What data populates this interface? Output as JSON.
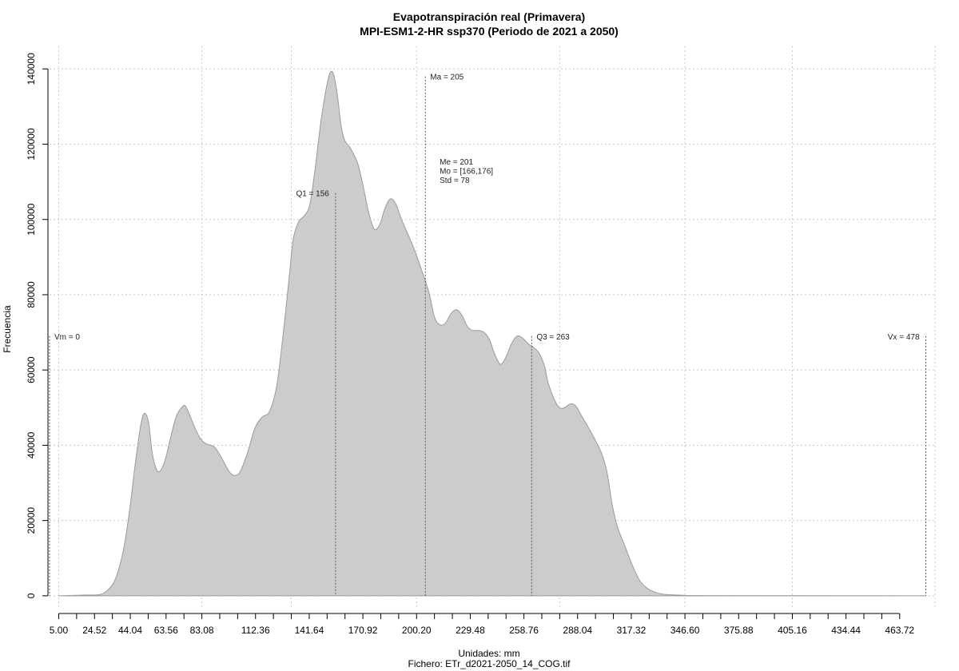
{
  "chart_data": {
    "type": "area",
    "title": "Evapotranspiración real (Primavera)",
    "subtitle": "MPI-ESM1-2-HR ssp370 (Periodo de 2021 a 2050)",
    "xlabel": "Unidades: mm",
    "ylabel": "Frecuencia",
    "caption": "Fichero: ETr_d2021-2050_14_COG.tif",
    "xlim": [
      0,
      483
    ],
    "ylim": [
      -3000,
      146000
    ],
    "x_ticks": [
      5.0,
      24.52,
      44.04,
      63.56,
      83.08,
      112.36,
      141.64,
      170.92,
      200.2,
      229.48,
      258.76,
      288.04,
      317.32,
      346.6,
      375.88,
      405.16,
      434.44,
      463.72
    ],
    "x_tick_labels": [
      "5.00",
      "24.52",
      "44.04",
      "63.56",
      "83.08",
      "112.36",
      "141.64",
      "170.92",
      "200.20",
      "229.48",
      "258.76",
      "288.04",
      "317.32",
      "346.60",
      "375.88",
      "405.16",
      "434.44",
      "463.72"
    ],
    "x_minor_ticks": [
      14.76,
      34.28,
      53.8,
      73.32,
      92.84,
      102.6,
      122.12,
      131.88,
      151.4,
      161.16,
      180.68,
      190.44,
      209.96,
      219.72,
      239.24,
      249.0,
      268.52,
      278.28,
      297.8,
      307.56,
      327.08,
      336.84,
      356.36,
      366.12,
      385.64,
      395.4,
      414.92,
      424.68,
      444.2,
      453.96
    ],
    "y_ticks": [
      0,
      20000,
      40000,
      60000,
      80000,
      100000,
      120000,
      140000
    ],
    "y_tick_labels": [
      "0",
      "20000",
      "40000",
      "60000",
      "80000",
      "100000",
      "120000",
      "140000"
    ],
    "grid": true,
    "fill_color": "#cccccc",
    "line_color": "#9a9a9a",
    "density_points": [
      [
        5,
        0
      ],
      [
        20,
        200
      ],
      [
        27,
        300
      ],
      [
        31,
        1200
      ],
      [
        35,
        3500
      ],
      [
        38,
        7500
      ],
      [
        41,
        14000
      ],
      [
        44,
        24000
      ],
      [
        47,
        36000
      ],
      [
        50,
        46000
      ],
      [
        52,
        48500
      ],
      [
        54,
        46000
      ],
      [
        56,
        38000
      ],
      [
        58,
        34000
      ],
      [
        60,
        33000
      ],
      [
        63,
        36000
      ],
      [
        66,
        42000
      ],
      [
        69,
        47500
      ],
      [
        72,
        50000
      ],
      [
        74,
        50500
      ],
      [
        76,
        48500
      ],
      [
        79,
        45000
      ],
      [
        82,
        42000
      ],
      [
        85,
        40500
      ],
      [
        90,
        39500
      ],
      [
        94,
        36500
      ],
      [
        98,
        33000
      ],
      [
        101,
        32000
      ],
      [
        104,
        33000
      ],
      [
        108,
        38000
      ],
      [
        112,
        44500
      ],
      [
        116,
        47500
      ],
      [
        120,
        49000
      ],
      [
        124,
        56000
      ],
      [
        128,
        72000
      ],
      [
        131,
        86000
      ],
      [
        133,
        95000
      ],
      [
        136,
        99500
      ],
      [
        139,
        101000
      ],
      [
        142,
        104000
      ],
      [
        145,
        114000
      ],
      [
        148,
        126000
      ],
      [
        151,
        135000
      ],
      [
        153,
        139000
      ],
      [
        155,
        138500
      ],
      [
        157,
        133000
      ],
      [
        159,
        125000
      ],
      [
        161,
        121000
      ],
      [
        164,
        119000
      ],
      [
        168,
        115000
      ],
      [
        171,
        109000
      ],
      [
        174,
        102000
      ],
      [
        177,
        97500
      ],
      [
        180,
        98500
      ],
      [
        183,
        103000
      ],
      [
        186,
        105500
      ],
      [
        189,
        104000
      ],
      [
        192,
        100000
      ],
      [
        196,
        95500
      ],
      [
        199,
        92000
      ],
      [
        203,
        86500
      ],
      [
        207,
        80500
      ],
      [
        210,
        74000
      ],
      [
        213,
        72000
      ],
      [
        216,
        72500
      ],
      [
        219,
        75000
      ],
      [
        222,
        76000
      ],
      [
        225,
        74500
      ],
      [
        228,
        71500
      ],
      [
        231,
        70500
      ],
      [
        234,
        70500
      ],
      [
        237,
        70000
      ],
      [
        240,
        68000
      ],
      [
        243,
        64000
      ],
      [
        246,
        61500
      ],
      [
        249,
        63500
      ],
      [
        252,
        67000
      ],
      [
        255,
        69000
      ],
      [
        258,
        68500
      ],
      [
        261,
        67000
      ],
      [
        264,
        66000
      ],
      [
        267,
        64500
      ],
      [
        270,
        61000
      ],
      [
        272,
        56500
      ],
      [
        275,
        52500
      ],
      [
        278,
        50000
      ],
      [
        281,
        50000
      ],
      [
        284,
        51000
      ],
      [
        287,
        50500
      ],
      [
        290,
        48000
      ],
      [
        293,
        45500
      ],
      [
        297,
        42000
      ],
      [
        301,
        38000
      ],
      [
        304,
        33000
      ],
      [
        307,
        24000
      ],
      [
        310,
        18000
      ],
      [
        314,
        13000
      ],
      [
        318,
        8000
      ],
      [
        322,
        4000
      ],
      [
        326,
        2000
      ],
      [
        330,
        1000
      ],
      [
        335,
        400
      ],
      [
        345,
        150
      ],
      [
        360,
        50
      ],
      [
        478,
        0
      ]
    ],
    "vlines": [
      {
        "x": 0,
        "top": 69000,
        "label": "Vm = 0",
        "anchor": "start"
      },
      {
        "x": 156,
        "top": 107000,
        "label": "Q1 = 156",
        "anchor": "end"
      },
      {
        "x": 205,
        "top": 138000,
        "label": "Ma = 205",
        "anchor": "start"
      },
      {
        "x": 263,
        "top": 69000,
        "label": "Q3 = 263",
        "anchor": "start"
      },
      {
        "x": 478,
        "top": 69000,
        "label": "Vx = 478",
        "anchor": "end"
      }
    ],
    "stats_label": [
      "Me = 201",
      "Mo = [166,176]",
      "Std = 78"
    ]
  }
}
